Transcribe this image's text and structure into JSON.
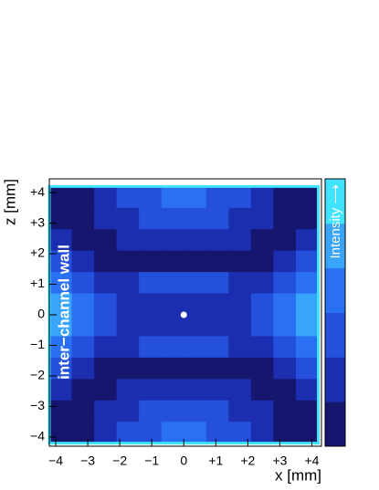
{
  "chart_data": {
    "type": "heatmap",
    "xlabel": "x [mm]",
    "ylabel": "z [mm]",
    "annotation": "inter−channel wall",
    "colorbar_label": "Intensity ⟶",
    "xlim": [
      -4.2,
      4.3
    ],
    "ylim": [
      -4.3,
      4.45
    ],
    "xticks": [
      {
        "value": -4,
        "label": "−4"
      },
      {
        "value": -3,
        "label": "−3"
      },
      {
        "value": -2,
        "label": "−2"
      },
      {
        "value": -1,
        "label": "−1"
      },
      0,
      {
        "value": 1,
        "label": "+1"
      },
      {
        "value": 2,
        "label": "+2"
      },
      {
        "value": 3,
        "label": "+3"
      },
      {
        "value": 4,
        "label": "+4"
      }
    ],
    "yticks": [
      {
        "value": -4,
        "label": "−4"
      },
      {
        "value": -3,
        "label": "−3"
      },
      {
        "value": -2,
        "label": "−2"
      },
      {
        "value": -1,
        "label": "−1"
      },
      0,
      {
        "value": 1,
        "label": "+1"
      },
      {
        "value": 2,
        "label": "+2"
      },
      {
        "value": 3,
        "label": "+3"
      },
      {
        "value": 4,
        "label": "+4"
      }
    ],
    "xbins": [
      -4.2,
      -3.5,
      -2.8,
      -2.1,
      -1.4,
      -0.7,
      0,
      0.7,
      1.4,
      2.1,
      2.8,
      3.5,
      4.2
    ],
    "ybins": [
      4.2,
      3.5,
      2.8,
      2.1,
      1.4,
      0.7,
      0,
      -0.7,
      -1.4,
      -2.1,
      -2.8,
      -3.5,
      -4.2
    ],
    "colors": [
      "#16166e",
      "#1c2eb0",
      "#2450dc",
      "#2a70f2",
      "#38a4fa",
      "#40e4ff"
    ],
    "z": [
      [
        1,
        1,
        2,
        3,
        3,
        4,
        4,
        3,
        3,
        2,
        1,
        1
      ],
      [
        1,
        1,
        2,
        2,
        3,
        3,
        3,
        3,
        2,
        2,
        1,
        1
      ],
      [
        2,
        1,
        1,
        2,
        2,
        2,
        2,
        2,
        2,
        1,
        1,
        2
      ],
      [
        3,
        2,
        1,
        1,
        1,
        1,
        1,
        1,
        1,
        1,
        2,
        3
      ],
      [
        4,
        3,
        2,
        2,
        3,
        3,
        3,
        3,
        2,
        2,
        3,
        4
      ],
      [
        5,
        4,
        3,
        2,
        2,
        2,
        2,
        2,
        2,
        3,
        4,
        5
      ],
      [
        5,
        4,
        3,
        2,
        2,
        2,
        2,
        2,
        2,
        3,
        4,
        5
      ],
      [
        4,
        3,
        2,
        2,
        3,
        3,
        3,
        3,
        2,
        2,
        3,
        4
      ],
      [
        3,
        2,
        1,
        1,
        1,
        1,
        1,
        1,
        1,
        1,
        2,
        3
      ],
      [
        2,
        1,
        1,
        2,
        2,
        2,
        2,
        2,
        2,
        1,
        1,
        2
      ],
      [
        1,
        1,
        2,
        2,
        3,
        3,
        3,
        3,
        2,
        2,
        1,
        1
      ],
      [
        1,
        1,
        2,
        3,
        3,
        4,
        4,
        3,
        3,
        2,
        1,
        1
      ]
    ],
    "points": {
      "x": [
        0
      ],
      "y": [
        0
      ]
    }
  }
}
